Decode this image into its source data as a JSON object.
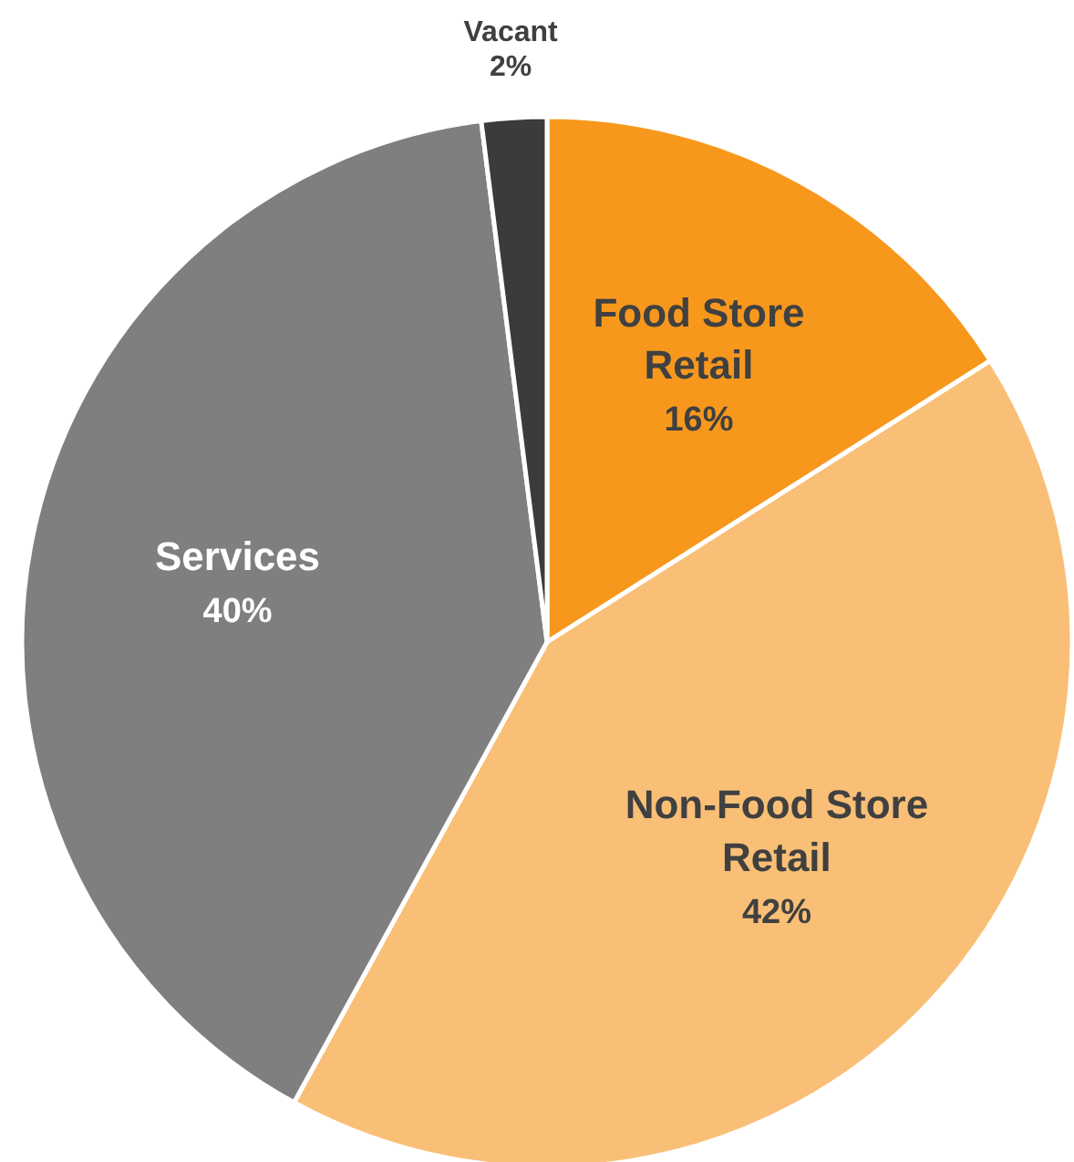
{
  "chart_data": {
    "type": "pie",
    "categories": [
      "Food Store Retail",
      "Non-Food Store Retail",
      "Services",
      "Vacant"
    ],
    "values": [
      16,
      42,
      40,
      2
    ],
    "colors": [
      "#f7981d",
      "#f9bf76",
      "#7f7f7f",
      "#3b3b3b"
    ],
    "value_labels": [
      "16%",
      "42%",
      "40%",
      "2%"
    ],
    "legend": false
  }
}
